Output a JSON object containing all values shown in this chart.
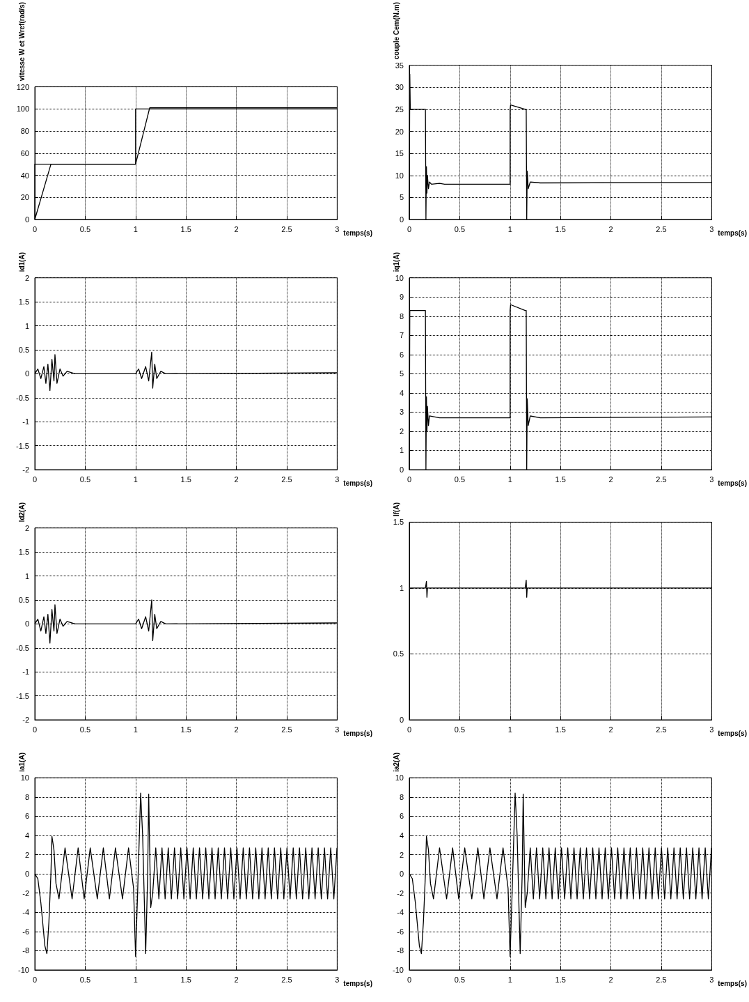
{
  "chart_data": [
    {
      "type": "line",
      "ylabel": "vitesse W et Wref(rad/s)",
      "xlabel": "temps(s)",
      "xlim": [
        0,
        3
      ],
      "xticks": [
        0,
        0.5,
        1,
        1.5,
        2,
        2.5,
        3
      ],
      "ylim": [
        0,
        120
      ],
      "yticks": [
        0,
        20,
        40,
        60,
        80,
        100,
        120
      ],
      "grid": true,
      "series": [
        {
          "color": "#000000",
          "x": [
            0,
            0,
            1,
            1,
            3
          ],
          "values": [
            0,
            50,
            50,
            100,
            100
          ]
        },
        {
          "color": "#000000",
          "x": [
            0,
            0.16,
            1,
            1.14,
            3
          ],
          "values": [
            0,
            50,
            50,
            101,
            101
          ]
        }
      ]
    },
    {
      "type": "line",
      "ylabel": "couple Cem(N.m)",
      "xlabel": "temps(s)",
      "xlim": [
        0,
        3
      ],
      "xticks": [
        0,
        0.5,
        1,
        1.5,
        2,
        2.5,
        3
      ],
      "ylim": [
        0,
        35
      ],
      "yticks": [
        0,
        5,
        10,
        15,
        20,
        25,
        30,
        35
      ],
      "grid": true,
      "series": [
        {
          "color": "#000000",
          "x": [
            0,
            0.005,
            0.01,
            0.15,
            0.16,
            0.165,
            0.17,
            0.175,
            0.18,
            0.19,
            0.2,
            0.22,
            0.3,
            0.35,
            1,
            1,
            1.005,
            1.15,
            1.16,
            1.165,
            1.17,
            1.18,
            1.2,
            1.3,
            3
          ],
          "values": [
            0,
            33,
            25,
            25,
            25,
            0,
            12,
            6,
            10,
            7,
            8.5,
            8,
            8.2,
            8,
            8,
            25,
            26,
            25,
            25,
            0,
            11,
            7,
            8.5,
            8.3,
            8.4
          ]
        }
      ]
    },
    {
      "type": "line",
      "ylabel": "id1(A)",
      "xlabel": "temps(s)",
      "xlim": [
        0,
        3
      ],
      "xticks": [
        0,
        0.5,
        1,
        1.5,
        2,
        2.5,
        3
      ],
      "ylim": [
        -2,
        2
      ],
      "yticks": [
        -2,
        -1.5,
        -1,
        -0.5,
        0,
        0.5,
        1,
        1.5,
        2
      ],
      "grid": true,
      "series": [
        {
          "color": "#000000",
          "x": [
            0,
            0.03,
            0.06,
            0.09,
            0.11,
            0.13,
            0.15,
            0.17,
            0.19,
            0.2,
            0.22,
            0.25,
            0.28,
            0.32,
            0.4,
            1,
            1.03,
            1.06,
            1.1,
            1.13,
            1.16,
            1.17,
            1.19,
            1.21,
            1.25,
            1.3,
            3
          ],
          "values": [
            0,
            0.1,
            -0.1,
            0.15,
            -0.2,
            0.2,
            -0.35,
            0.3,
            -0.15,
            0.4,
            -0.2,
            0.1,
            -0.05,
            0.05,
            0,
            0,
            0.1,
            -0.1,
            0.15,
            -0.15,
            0.45,
            -0.3,
            0.2,
            -0.1,
            0.05,
            0,
            0.02
          ]
        }
      ]
    },
    {
      "type": "line",
      "ylabel": "iq1(A)",
      "xlabel": "temps(s)",
      "xlim": [
        0,
        3
      ],
      "xticks": [
        0,
        0.5,
        1,
        1.5,
        2,
        2.5,
        3
      ],
      "ylim": [
        0,
        10
      ],
      "yticks": [
        0,
        1,
        2,
        3,
        4,
        5,
        6,
        7,
        8,
        9,
        10
      ],
      "grid": true,
      "series": [
        {
          "color": "#000000",
          "x": [
            0,
            0.005,
            0.15,
            0.16,
            0.165,
            0.17,
            0.175,
            0.18,
            0.19,
            0.2,
            0.3,
            0.35,
            1,
            1,
            1.005,
            1.15,
            1.16,
            1.165,
            1.17,
            1.18,
            1.2,
            1.3,
            3
          ],
          "values": [
            0,
            8.3,
            8.3,
            8.3,
            0,
            3.8,
            2,
            3.3,
            2.3,
            2.8,
            2.7,
            2.7,
            2.7,
            8.3,
            8.6,
            8.3,
            8.3,
            0,
            3.7,
            2.3,
            2.8,
            2.7,
            2.75
          ]
        }
      ]
    },
    {
      "type": "line",
      "ylabel": "Id2(A)",
      "xlabel": "temps(s)",
      "xlim": [
        0,
        3
      ],
      "xticks": [
        0,
        0.5,
        1,
        1.5,
        2,
        2.5,
        3
      ],
      "ylim": [
        -2,
        2
      ],
      "yticks": [
        -2,
        -1.5,
        -1,
        -0.5,
        0,
        0.5,
        1,
        1.5,
        2
      ],
      "grid": true,
      "series": [
        {
          "color": "#000000",
          "x": [
            0,
            0.03,
            0.06,
            0.09,
            0.11,
            0.13,
            0.15,
            0.17,
            0.19,
            0.2,
            0.22,
            0.25,
            0.28,
            0.32,
            0.4,
            1,
            1.03,
            1.06,
            1.1,
            1.13,
            1.16,
            1.17,
            1.19,
            1.21,
            1.25,
            1.3,
            3
          ],
          "values": [
            0,
            0.1,
            -0.15,
            0.15,
            -0.2,
            0.2,
            -0.4,
            0.3,
            -0.15,
            0.4,
            -0.2,
            0.1,
            -0.05,
            0.05,
            0,
            0,
            0.1,
            -0.1,
            0.15,
            -0.15,
            0.5,
            -0.35,
            0.2,
            -0.1,
            0.05,
            0,
            0.02
          ]
        }
      ]
    },
    {
      "type": "line",
      "ylabel": "If(A)",
      "xlabel": "temps(s)",
      "xlim": [
        0,
        3
      ],
      "xticks": [
        0,
        0.5,
        1,
        1.5,
        2,
        2.5,
        3
      ],
      "ylim": [
        0,
        1.5
      ],
      "yticks": [
        0,
        0.5,
        1,
        1.5
      ],
      "grid": true,
      "series": [
        {
          "color": "#000000",
          "x": [
            0,
            0.16,
            0.17,
            0.175,
            0.18,
            1.15,
            1.16,
            1.165,
            1.17,
            3
          ],
          "values": [
            1,
            1,
            1.05,
            0.93,
            1,
            1,
            1.06,
            0.93,
            1,
            1
          ]
        }
      ]
    },
    {
      "type": "line",
      "ylabel": "ia1(A)",
      "xlabel": "temps(s)",
      "xlim": [
        0,
        3
      ],
      "xticks": [
        0,
        0.5,
        1,
        1.5,
        2,
        2.5,
        3
      ],
      "ylim": [
        -10,
        10
      ],
      "yticks": [
        -10,
        -8,
        -6,
        -4,
        -2,
        0,
        2,
        4,
        6,
        8,
        10
      ],
      "grid": true,
      "series": [
        {
          "color": "#000000",
          "x": [
            0,
            0.03,
            0.06,
            0.1,
            0.12,
            0.14,
            0.16,
            0.17,
            0.19,
            0.21,
            0.24,
            0.3,
            0.37,
            0.43,
            0.49,
            0.55,
            0.62,
            0.68,
            0.74,
            0.8,
            0.87,
            0.93,
            0.98,
            1,
            1.02,
            1.05,
            1.07,
            1.1,
            1.12,
            1.13,
            1.15,
            1.17,
            1.2,
            1.231,
            1.262,
            1.293,
            1.324,
            1.355,
            1.386,
            1.417,
            1.448,
            1.479,
            1.51,
            1.541,
            1.572,
            1.603,
            1.634,
            1.665,
            1.696,
            1.727,
            1.758,
            1.789,
            1.82,
            1.851,
            1.882,
            1.913,
            1.944,
            1.975,
            2.006,
            2.037,
            2.068,
            2.099,
            2.13,
            2.161,
            2.192,
            2.223,
            2.254,
            2.285,
            2.316,
            2.347,
            2.378,
            2.409,
            2.44,
            2.471,
            2.502,
            2.533,
            2.564,
            2.595,
            2.626,
            2.657,
            2.688,
            2.719,
            2.75,
            2.781,
            2.812,
            2.843,
            2.874,
            2.905,
            2.936,
            2.967,
            2.998
          ],
          "values": [
            0,
            -0.5,
            -3,
            -7.5,
            -8.3,
            -5,
            0,
            3.9,
            2.5,
            -1,
            -2.6,
            2.7,
            -2.6,
            2.7,
            -2.6,
            2.7,
            -2.6,
            2.7,
            -2.6,
            2.7,
            -2.6,
            2.7,
            -1.5,
            -8.6,
            -2,
            8.4,
            4,
            -8.3,
            0,
            8.3,
            -3.5,
            -2,
            2.7,
            -2.6,
            2.7,
            -2.6,
            2.7,
            -2.6,
            2.7,
            -2.6,
            2.7,
            -2.6,
            2.7,
            -2.6,
            2.7,
            -2.6,
            2.7,
            -2.6,
            2.7,
            -2.6,
            2.7,
            -2.6,
            2.7,
            -2.6,
            2.7,
            -2.6,
            2.7,
            -2.6,
            2.7,
            -2.6,
            2.7,
            -2.6,
            2.7,
            -2.6,
            2.7,
            -2.6,
            2.7,
            -2.6,
            2.7,
            -2.6,
            2.7,
            -2.6,
            2.7,
            -2.6,
            2.7,
            -2.6,
            2.7,
            -2.6,
            2.7,
            -2.6,
            2.7,
            -2.6,
            2.7,
            -2.6,
            2.7,
            -2.6,
            2.7,
            -2.6,
            2.7,
            -2.6,
            2.7
          ]
        }
      ]
    },
    {
      "type": "line",
      "ylabel": "ia2(A)",
      "xlabel": "temps(s)",
      "xlim": [
        0,
        3
      ],
      "xticks": [
        0,
        0.5,
        1,
        1.5,
        2,
        2.5,
        3
      ],
      "ylim": [
        -10,
        10
      ],
      "yticks": [
        -10,
        -8,
        -6,
        -4,
        -2,
        0,
        2,
        4,
        6,
        8,
        10
      ],
      "grid": true,
      "series": [
        {
          "color": "#000000",
          "x": [
            0,
            0.03,
            0.06,
            0.1,
            0.12,
            0.14,
            0.16,
            0.17,
            0.19,
            0.21,
            0.24,
            0.3,
            0.37,
            0.43,
            0.49,
            0.55,
            0.62,
            0.68,
            0.74,
            0.8,
            0.87,
            0.93,
            0.98,
            1,
            1.02,
            1.05,
            1.07,
            1.1,
            1.12,
            1.13,
            1.15,
            1.17,
            1.2,
            1.231,
            1.262,
            1.293,
            1.324,
            1.355,
            1.386,
            1.417,
            1.448,
            1.479,
            1.51,
            1.541,
            1.572,
            1.603,
            1.634,
            1.665,
            1.696,
            1.727,
            1.758,
            1.789,
            1.82,
            1.851,
            1.882,
            1.913,
            1.944,
            1.975,
            2.006,
            2.037,
            2.068,
            2.099,
            2.13,
            2.161,
            2.192,
            2.223,
            2.254,
            2.285,
            2.316,
            2.347,
            2.378,
            2.409,
            2.44,
            2.471,
            2.502,
            2.533,
            2.564,
            2.595,
            2.626,
            2.657,
            2.688,
            2.719,
            2.75,
            2.781,
            2.812,
            2.843,
            2.874,
            2.905,
            2.936,
            2.967,
            2.998
          ],
          "values": [
            0,
            -0.5,
            -3,
            -7.5,
            -8.3,
            -5,
            0,
            3.9,
            2.5,
            -1,
            -2.6,
            2.7,
            -2.6,
            2.7,
            -2.6,
            2.7,
            -2.6,
            2.7,
            -2.6,
            2.7,
            -2.6,
            2.7,
            -1.5,
            -8.6,
            -2,
            8.4,
            4,
            -8.3,
            0,
            8.3,
            -3.5,
            -2,
            2.7,
            -2.6,
            2.7,
            -2.6,
            2.7,
            -2.6,
            2.7,
            -2.6,
            2.7,
            -2.6,
            2.7,
            -2.6,
            2.7,
            -2.6,
            2.7,
            -2.6,
            2.7,
            -2.6,
            2.7,
            -2.6,
            2.7,
            -2.6,
            2.7,
            -2.6,
            2.7,
            -2.6,
            2.7,
            -2.6,
            2.7,
            -2.6,
            2.7,
            -2.6,
            2.7,
            -2.6,
            2.7,
            -2.6,
            2.7,
            -2.6,
            2.7,
            -2.6,
            2.7,
            -2.6,
            2.7,
            -2.6,
            2.7,
            -2.6,
            2.7,
            -2.6,
            2.7,
            -2.6,
            2.7,
            -2.6,
            2.7,
            -2.6,
            2.7,
            -2.6,
            2.7,
            -2.6,
            2.7
          ]
        }
      ]
    }
  ]
}
